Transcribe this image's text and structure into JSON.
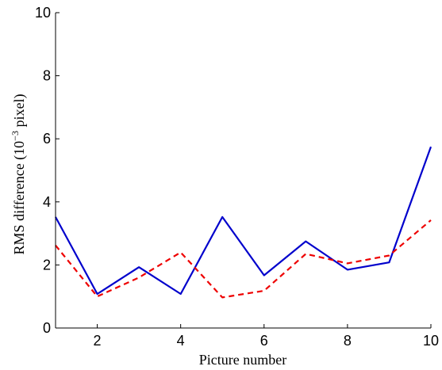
{
  "chart_data": {
    "type": "line",
    "xlabel": "Picture number",
    "ylabel_prefix": "RMS difference (10",
    "ylabel_exponent": "−3",
    "ylabel_suffix": " pixel)",
    "xlim": [
      1,
      10
    ],
    "ylim": [
      0,
      10
    ],
    "xticks": [
      "2",
      "4",
      "6",
      "8",
      "10"
    ],
    "yticks": [
      "0",
      "2",
      "4",
      "6",
      "8",
      "10"
    ],
    "grid": false,
    "x": [
      1,
      2,
      3,
      4,
      5,
      6,
      7,
      8,
      9,
      10
    ],
    "series": [
      {
        "values": [
          3.52,
          1.08,
          1.93,
          1.08,
          3.52,
          1.67,
          2.75,
          1.85,
          2.08,
          5.75
        ],
        "color": "#0000cc",
        "style": "solid"
      },
      {
        "values": [
          2.62,
          1.0,
          1.6,
          2.4,
          0.97,
          1.18,
          2.35,
          2.05,
          2.3,
          3.42
        ],
        "color": "#ee0000",
        "style": "dashed"
      }
    ]
  }
}
